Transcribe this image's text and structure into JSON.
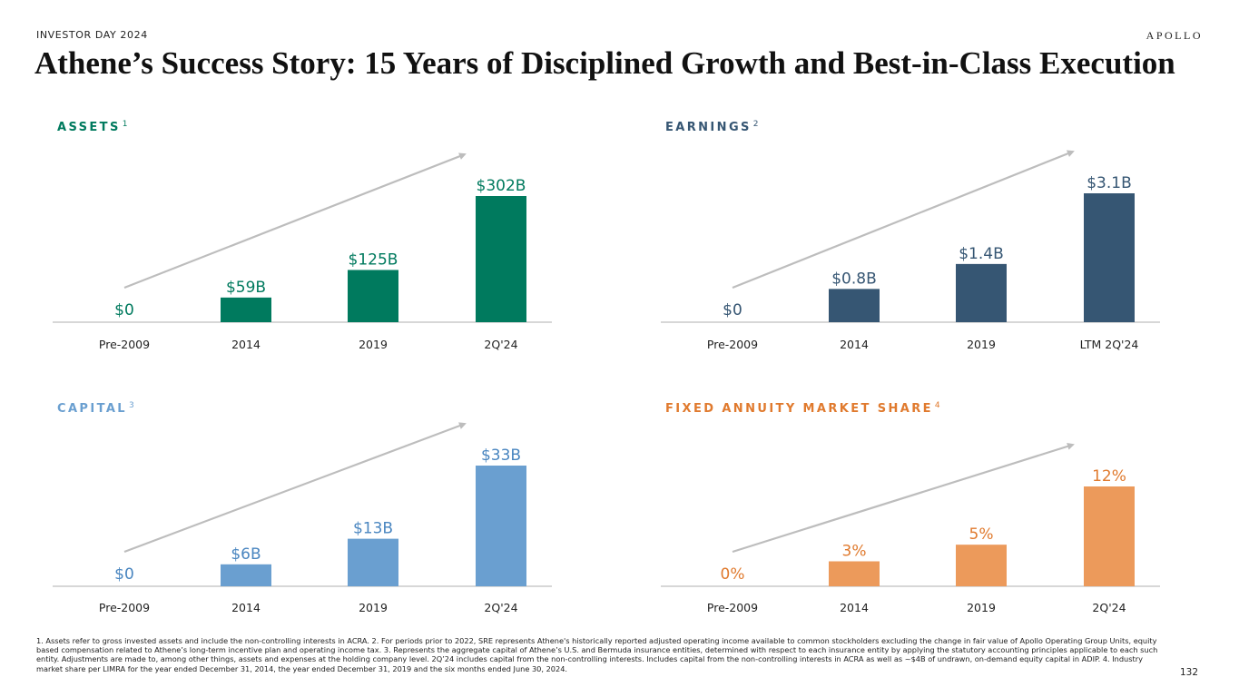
{
  "header": {
    "eyebrow": "INVESTOR DAY 2024",
    "logo": "APOLLO",
    "title": "Athene’s Success Story: 15 Years of Disciplined Growth and Best-in-Class Execution"
  },
  "colors": {
    "assets": "#007A5E",
    "earnings": "#365673",
    "capital": "#6A9FD0",
    "market_share": "#EC9A5B",
    "market_share_title": "#E07A2E",
    "capital_title": "#6A9FD0",
    "arrow": "#BDBDBD",
    "axis": "#BFBFBF"
  },
  "chart_data": [
    {
      "id": "assets",
      "type": "bar",
      "title": "ASSETS",
      "footnote_ref": "1",
      "categories": [
        "Pre-2009",
        "2014",
        "2019",
        "2Q'24"
      ],
      "values": [
        0,
        59,
        125,
        302
      ],
      "labels": [
        "$0",
        "$59B",
        "$125B",
        "$302B"
      ],
      "unit": "$B",
      "trend_arrow": true,
      "xlabel": "",
      "ylabel": "",
      "grid": false
    },
    {
      "id": "earnings",
      "type": "bar",
      "title": "EARNINGS",
      "footnote_ref": "2",
      "categories": [
        "Pre-2009",
        "2014",
        "2019",
        "LTM 2Q'24"
      ],
      "values": [
        0,
        0.8,
        1.4,
        3.1
      ],
      "labels": [
        "$0",
        "$0.8B",
        "$1.4B",
        "$3.1B"
      ],
      "unit": "$B",
      "trend_arrow": true,
      "xlabel": "",
      "ylabel": "",
      "grid": false
    },
    {
      "id": "capital",
      "type": "bar",
      "title": "CAPITAL",
      "footnote_ref": "3",
      "categories": [
        "Pre-2009",
        "2014",
        "2019",
        "2Q'24"
      ],
      "values": [
        0,
        6,
        13,
        33
      ],
      "labels": [
        "$0",
        "$6B",
        "$13B",
        "$33B"
      ],
      "unit": "$B",
      "trend_arrow": true,
      "xlabel": "",
      "ylabel": "",
      "grid": false
    },
    {
      "id": "market_share",
      "type": "bar",
      "title": "FIXED ANNUITY MARKET SHARE",
      "footnote_ref": "4",
      "categories": [
        "Pre-2009",
        "2014",
        "2019",
        "2Q'24"
      ],
      "values": [
        0,
        3,
        5,
        12
      ],
      "labels": [
        "0%",
        "3%",
        "5%",
        "12%"
      ],
      "unit": "%",
      "trend_arrow": true,
      "xlabel": "",
      "ylabel": "",
      "grid": false
    }
  ],
  "footnote": "1. Assets refer to gross invested assets and include the non-controlling interests in ACRA. 2. For periods prior to 2022, SRE represents Athene's historically reported adjusted operating income available to common stockholders excluding the change in fair value of Apollo Operating Group Units, equity based compensation related to Athene’s long-term incentive plan and operating income tax. 3. Represents the aggregate capital of Athene’s U.S. and Bermuda insurance entities, determined with respect to each insurance entity by applying the statutory accounting principles applicable to each such entity. Adjustments are made to, among other things, assets and expenses at the holding company level. 2Q’24 includes capital from the non-controlling interests. Includes capital from the non-controlling interests in ACRA as well as ~$4B of undrawn, on-demand equity capital in ADIP. 4. Industry market share per LIMRA for the year ended December 31, 2014, the year ended December 31, 2019 and the six months ended June 30, 2024.",
  "page_number": "132"
}
